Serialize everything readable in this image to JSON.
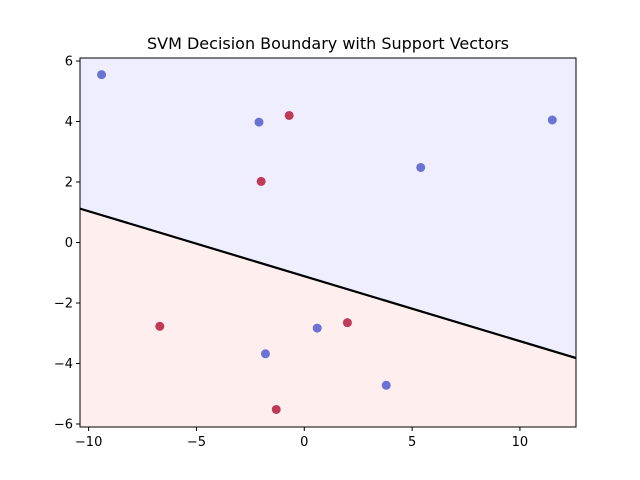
{
  "chart_data": {
    "type": "scatter",
    "title": "SVM Decision Boundary with Support Vectors",
    "xlabel": "",
    "ylabel": "",
    "xlim": [
      -10.4,
      12.6
    ],
    "ylim": [
      -6.1,
      6.1
    ],
    "xticks": [
      -10,
      -5,
      0,
      5,
      10
    ],
    "xtick_labels": [
      "−10",
      "−5",
      "0",
      "5",
      "10"
    ],
    "yticks": [
      -6,
      -4,
      -2,
      0,
      2,
      4,
      6
    ],
    "ytick_labels": [
      "−6",
      "−4",
      "−2",
      "0",
      "2",
      "4",
      "6"
    ],
    "grid": false,
    "decision_boundary": {
      "type": "line",
      "x": [
        -10.4,
        12.6
      ],
      "y": [
        1.12,
        -3.82
      ]
    },
    "regions": [
      {
        "class": "upper",
        "color": "#eeeeff"
      },
      {
        "class": "lower",
        "color": "#ffeeee"
      }
    ],
    "series": [
      {
        "color": "#6b72d4",
        "points": [
          {
            "x": -9.4,
            "y": 5.55
          },
          {
            "x": -2.1,
            "y": 3.98
          },
          {
            "x": 5.4,
            "y": 2.48
          },
          {
            "x": 11.5,
            "y": 4.05
          },
          {
            "x": 0.6,
            "y": -2.83
          },
          {
            "x": -1.8,
            "y": -3.68
          },
          {
            "x": 3.8,
            "y": -4.72
          }
        ]
      },
      {
        "color": "#c03a57",
        "points": [
          {
            "x": -0.7,
            "y": 4.2
          },
          {
            "x": -2.0,
            "y": 2.02
          },
          {
            "x": -6.7,
            "y": -2.77
          },
          {
            "x": 2.0,
            "y": -2.65
          },
          {
            "x": -1.3,
            "y": -5.52
          }
        ]
      }
    ]
  }
}
